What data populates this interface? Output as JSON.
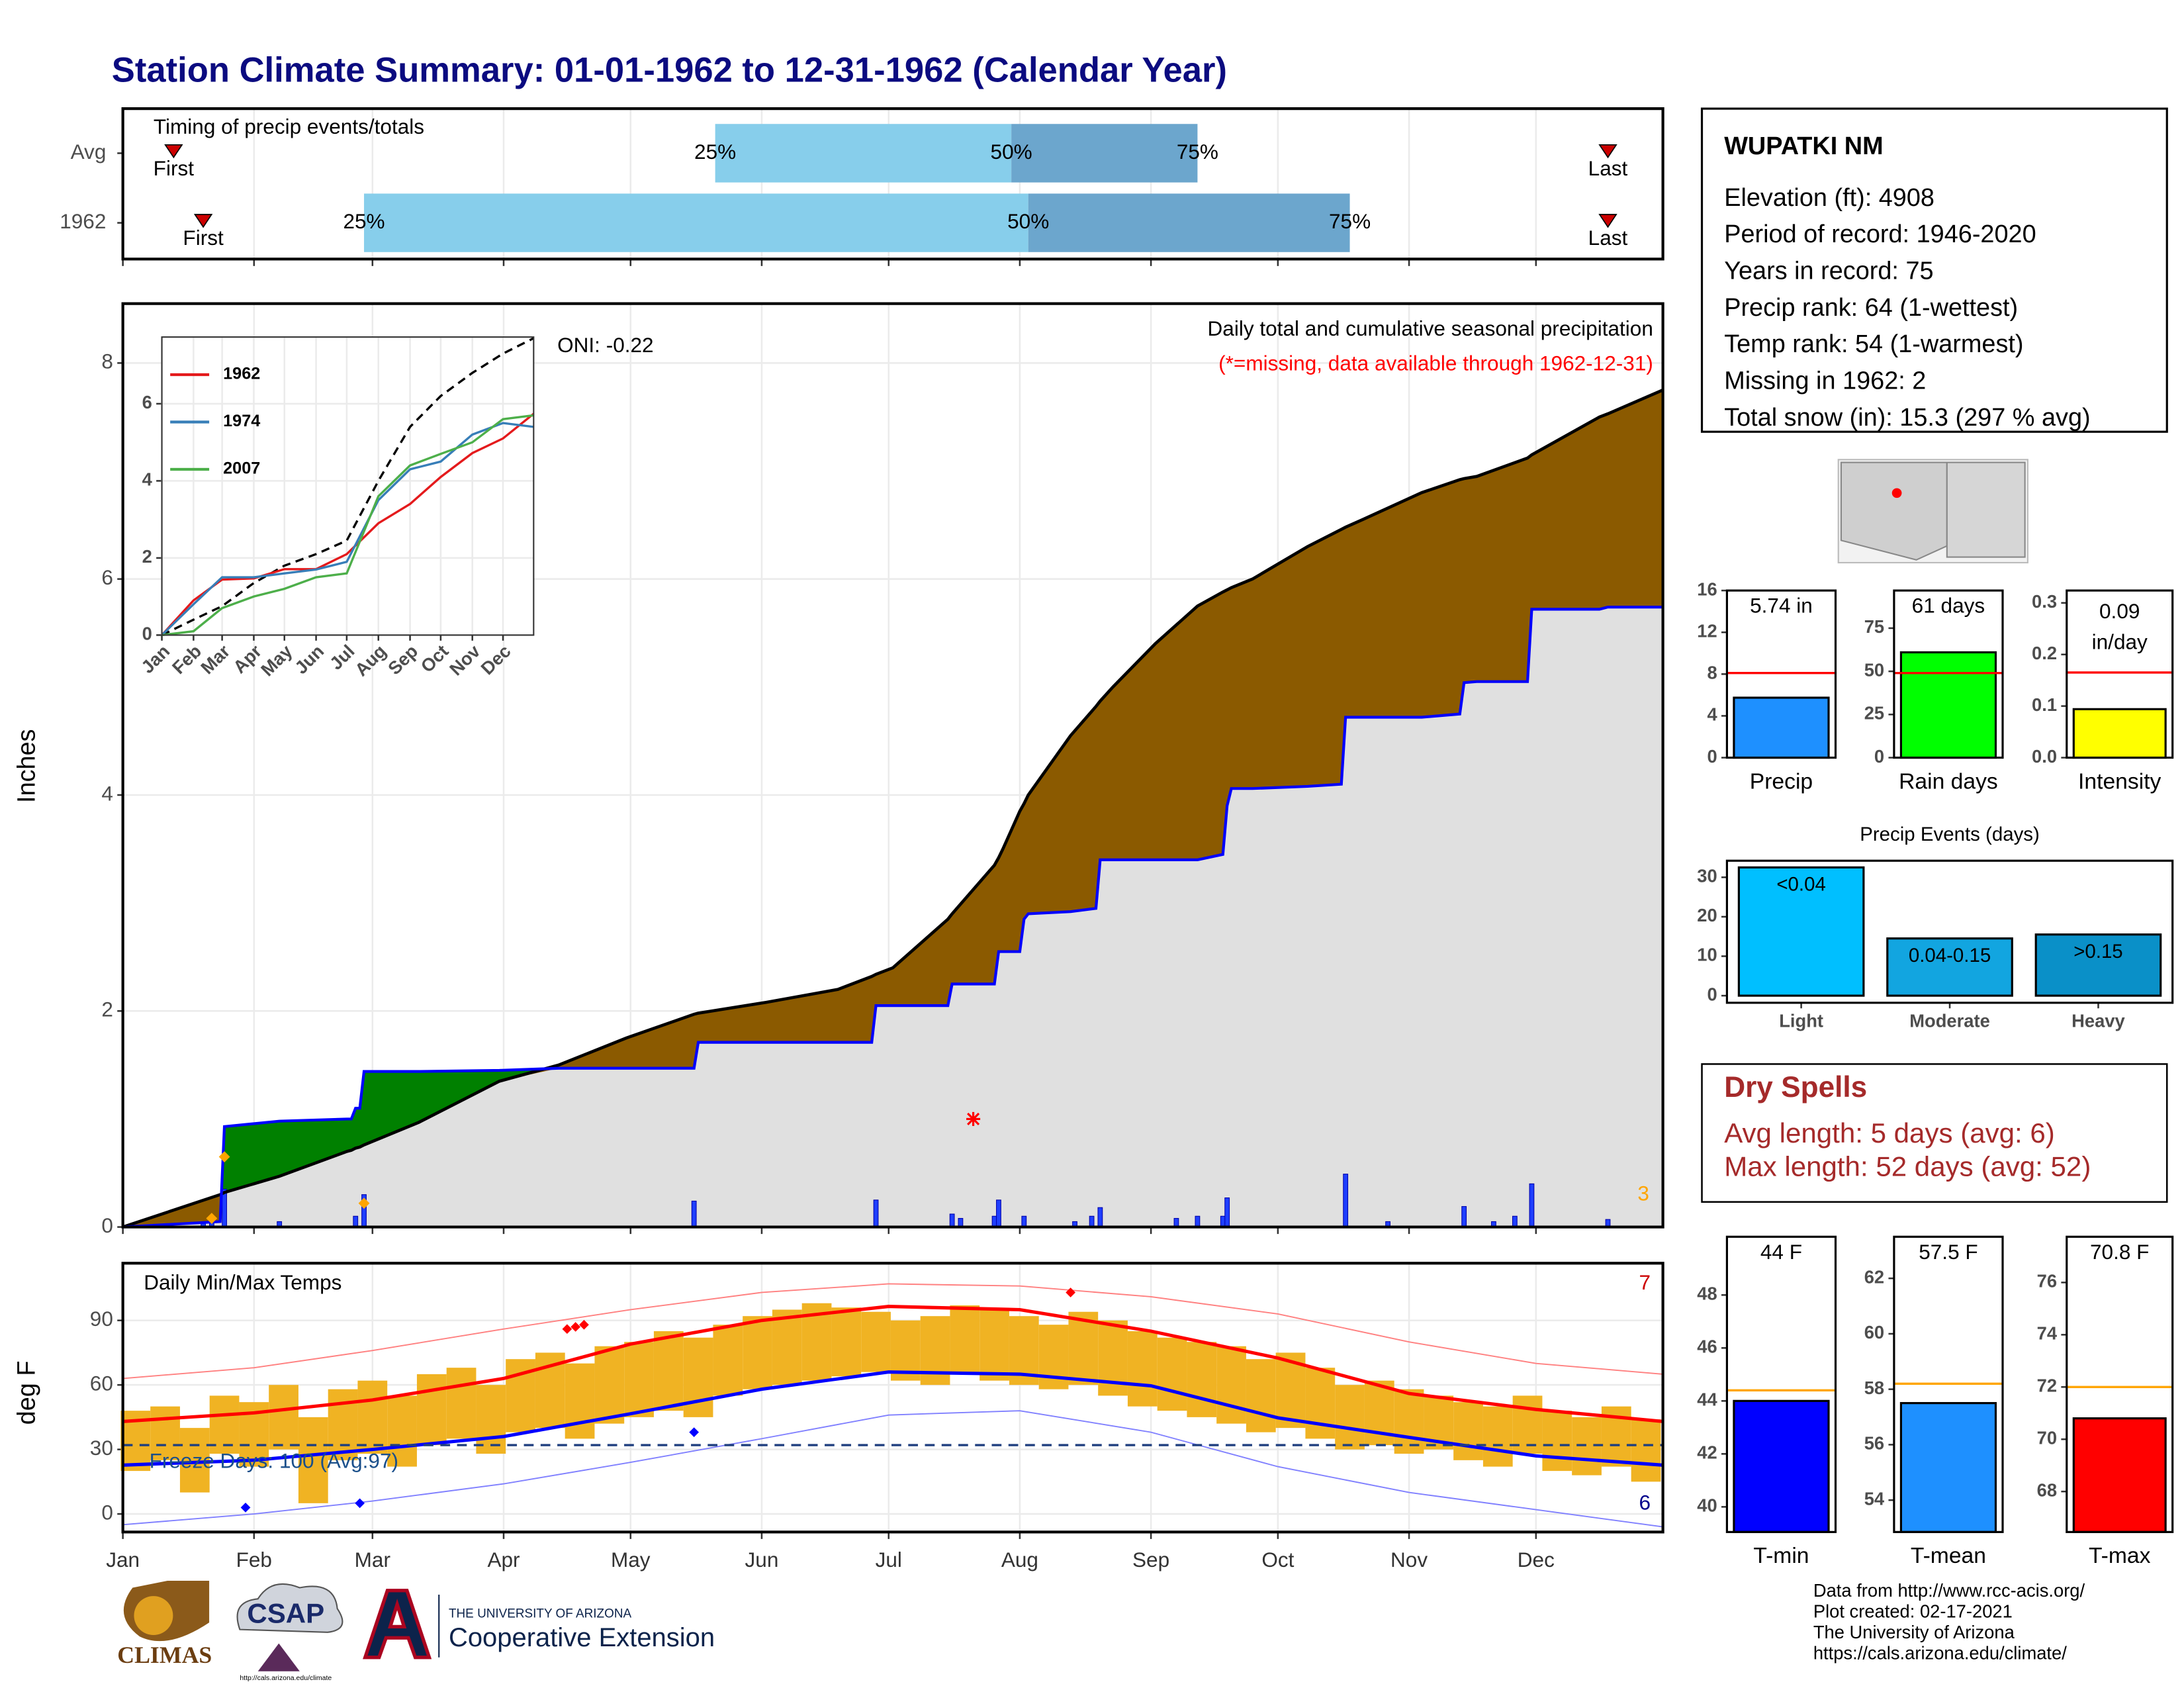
{
  "title": "Station Climate Summary: 01-01-1962 to 12-31-1962 (Calendar Year)",
  "station": {
    "name": "WUPATKI NM",
    "lines": [
      "Elevation (ft): 4908",
      "Period of record: 1946-2020",
      "Years in record: 75",
      "Precip rank: 64 (1-wettest)",
      "Temp rank: 54 (1-warmest)",
      "Missing in 1962: 2",
      "Total snow (in): 15.3 (297 % avg)"
    ]
  },
  "dry_spells": {
    "title": "Dry Spells",
    "lines": [
      "Avg length: 5 days (avg: 6)",
      "Max length: 52 days (avg: 52)"
    ]
  },
  "credits": [
    "Data from http://www.rcc-acis.org/",
    "Plot created: 02-17-2021",
    "The University of Arizona",
    "https://cals.arizona.edu/climate/"
  ],
  "logos": {
    "climas": "CLIMAS",
    "csap": "CSAP",
    "csap_url": "http://cals.arizona.edu/climate",
    "ua": "THE UNIVERSITY OF ARIZONA",
    "coop": "Cooperative Extension"
  },
  "chart_data": [
    {
      "type": "timing",
      "title": "Timing of precip events/totals",
      "categories": [
        "Avg",
        "1962"
      ],
      "first": [
        13,
        20
      ],
      "p25": [
        141,
        58
      ],
      "p50": [
        211,
        215
      ],
      "p75": [
        255,
        291
      ],
      "last": [
        352,
        352
      ],
      "labels": {
        "first": "First",
        "last": "Last",
        "p25": "25%",
        "p50": "50%",
        "p75": "75%"
      },
      "colors": [
        "#87ceeb",
        "#6ca6cd"
      ],
      "marker_color": "#cc0000",
      "xlim": [
        1,
        365
      ],
      "xticks": [
        1,
        32,
        60,
        91,
        121,
        152,
        182,
        213,
        244,
        274,
        305,
        335
      ]
    },
    {
      "type": "cumulative_precip",
      "title": "Daily total and cumulative seasonal precipitation",
      "subtitle": "(*=missing, data available through 1962-12-31)",
      "annotation": "ONI: -0.22",
      "corner_count": 3,
      "ylabel": "Inches",
      "xlim": [
        1,
        365
      ],
      "xticks": [
        1,
        32,
        60,
        91,
        121,
        152,
        182,
        213,
        244,
        274,
        305,
        335
      ],
      "ylim": [
        0,
        8.55
      ],
      "yticks": [
        0,
        2,
        4,
        6,
        8
      ],
      "grid": true,
      "x": [
        1,
        24,
        25,
        38,
        54,
        55,
        56,
        57,
        58,
        71,
        90,
        104,
        120,
        136,
        137,
        153,
        170,
        178,
        179,
        183,
        196,
        197,
        207,
        208,
        209,
        213,
        214,
        215,
        225,
        231,
        232,
        235,
        245,
        255,
        261,
        262,
        263,
        268,
        281,
        289,
        290,
        294,
        308,
        317,
        318,
        321,
        333,
        334,
        350,
        352,
        365
      ],
      "obs_cumulative": {
        "color": "#0000ff",
        "values": [
          0,
          0.05,
          0.93,
          0.98,
          1.0,
          1.0,
          1.1,
          1.1,
          1.44,
          1.44,
          1.45,
          1.47,
          1.47,
          1.47,
          1.71,
          1.71,
          1.71,
          1.71,
          2.05,
          2.05,
          2.05,
          2.25,
          2.25,
          2.55,
          2.55,
          2.55,
          2.85,
          2.9,
          2.92,
          2.95,
          3.4,
          3.4,
          3.4,
          3.4,
          3.45,
          3.9,
          4.06,
          4.06,
          4.08,
          4.1,
          4.72,
          4.72,
          4.72,
          4.75,
          5.04,
          5.05,
          5.05,
          5.72,
          5.72,
          5.74,
          5.74
        ]
      },
      "avg_cumulative": {
        "color": "#000000",
        "values": [
          0,
          0.3,
          0.32,
          0.47,
          0.7,
          0.71,
          0.73,
          0.74,
          0.76,
          0.97,
          1.35,
          1.5,
          1.75,
          1.97,
          1.98,
          2.08,
          2.2,
          2.32,
          2.34,
          2.4,
          2.85,
          2.9,
          3.35,
          3.42,
          3.5,
          3.85,
          3.92,
          4.0,
          4.55,
          4.82,
          4.87,
          5.0,
          5.4,
          5.75,
          5.88,
          5.9,
          5.92,
          6.0,
          6.3,
          6.46,
          6.48,
          6.55,
          6.8,
          6.92,
          6.93,
          6.95,
          7.12,
          7.15,
          7.5,
          7.53,
          7.75
        ]
      },
      "above_color": "#008000",
      "below_color": "#8b5a00",
      "base_color": "#e0e0e0",
      "daily": {
        "color": "#1f3fff",
        "x": [
          20,
          22,
          25,
          38,
          56,
          58,
          136,
          179,
          197,
          199,
          207,
          208,
          214,
          226,
          230,
          232,
          250,
          255,
          261,
          262,
          290,
          300,
          318,
          325,
          330,
          334,
          352
        ],
        "values": [
          0.04,
          0.08,
          0.35,
          0.05,
          0.1,
          0.3,
          0.24,
          0.25,
          0.12,
          0.08,
          0.1,
          0.25,
          0.1,
          0.05,
          0.1,
          0.18,
          0.08,
          0.1,
          0.1,
          0.27,
          0.49,
          0.05,
          0.19,
          0.05,
          0.1,
          0.4,
          0.07
        ]
      },
      "snow_points": {
        "color": "#ffa500",
        "x": [
          22,
          25,
          58
        ],
        "values": [
          0.08,
          0.65,
          0.22
        ]
      },
      "missing_points": {
        "color": "#ff0000",
        "x": [
          202
        ],
        "values": [
          1.0
        ]
      }
    },
    {
      "type": "inset_lines",
      "xlim": [
        1,
        365
      ],
      "ylim": [
        0,
        7.73
      ],
      "yticks": [
        0,
        2,
        4,
        6
      ],
      "xticks": [
        {
          "value": 1,
          "label": "Jan"
        },
        {
          "value": 32,
          "label": "Feb"
        },
        {
          "value": 60,
          "label": "Mar"
        },
        {
          "value": 91,
          "label": "Apr"
        },
        {
          "value": 121,
          "label": "May"
        },
        {
          "value": 152,
          "label": "Jun"
        },
        {
          "value": 182,
          "label": "Jul"
        },
        {
          "value": 213,
          "label": "Aug"
        },
        {
          "value": 244,
          "label": "Sep"
        },
        {
          "value": 274,
          "label": "Oct"
        },
        {
          "value": 305,
          "label": "Nov"
        },
        {
          "value": 335,
          "label": "Dec"
        }
      ],
      "x": [
        1,
        32,
        60,
        91,
        121,
        152,
        182,
        213,
        244,
        274,
        305,
        335,
        365
      ],
      "average": {
        "color": "#000000",
        "values": [
          0,
          0.4,
          0.75,
          1.35,
          1.8,
          2.1,
          2.45,
          4.0,
          5.4,
          6.2,
          6.8,
          7.3,
          7.7
        ]
      },
      "series": [
        {
          "name": "1962",
          "color": "#e41a1c",
          "values": [
            0,
            0.9,
            1.44,
            1.47,
            1.71,
            1.71,
            2.1,
            2.9,
            3.4,
            4.1,
            4.72,
            5.1,
            5.74
          ]
        },
        {
          "name": "1974",
          "color": "#377eb8",
          "values": [
            0,
            0.8,
            1.5,
            1.5,
            1.6,
            1.7,
            1.9,
            3.5,
            4.3,
            4.5,
            5.2,
            5.5,
            5.4
          ]
        },
        {
          "name": "2007",
          "color": "#4daf4a",
          "values": [
            0,
            0.1,
            0.7,
            1.0,
            1.2,
            1.5,
            1.6,
            3.6,
            4.4,
            4.7,
            5.0,
            5.6,
            5.7
          ]
        }
      ]
    },
    {
      "type": "temps",
      "title": "Daily Min/Max Temps",
      "ylabel": "deg F",
      "freeze_label": "Freeze Days: 100 (Avg:97)",
      "high_count": 7,
      "low_count": 6,
      "freeze_line": 32,
      "xlim": [
        1,
        365
      ],
      "ylim": [
        -8.4,
        116.6
      ],
      "yticks": [
        0,
        30,
        60,
        90
      ],
      "grid": true,
      "xticks": [
        {
          "value": 1,
          "label": "Jan"
        },
        {
          "value": 32,
          "label": "Feb"
        },
        {
          "value": 60,
          "label": "Mar"
        },
        {
          "value": 91,
          "label": "Apr"
        },
        {
          "value": 121,
          "label": "May"
        },
        {
          "value": 152,
          "label": "Jun"
        },
        {
          "value": 182,
          "label": "Jul"
        },
        {
          "value": 213,
          "label": "Aug"
        },
        {
          "value": 244,
          "label": "Sep"
        },
        {
          "value": 274,
          "label": "Oct"
        },
        {
          "value": 305,
          "label": "Nov"
        },
        {
          "value": 335,
          "label": "Dec"
        }
      ],
      "bars": {
        "color": "#f0b323",
        "x": [
          4,
          11,
          18,
          25,
          32,
          39,
          46,
          53,
          60,
          67,
          74,
          81,
          88,
          95,
          102,
          109,
          116,
          123,
          130,
          137,
          144,
          151,
          158,
          165,
          172,
          179,
          186,
          193,
          200,
          207,
          214,
          221,
          228,
          235,
          242,
          249,
          256,
          263,
          270,
          277,
          284,
          291,
          298,
          305,
          312,
          319,
          326,
          333,
          340,
          347,
          354,
          361
        ],
        "max": [
          48,
          50,
          40,
          55,
          52,
          60,
          45,
          58,
          62,
          55,
          65,
          68,
          60,
          72,
          75,
          70,
          78,
          80,
          85,
          82,
          88,
          92,
          95,
          98,
          96,
          94,
          90,
          92,
          97,
          95,
          92,
          88,
          94,
          90,
          85,
          82,
          80,
          78,
          72,
          75,
          68,
          60,
          62,
          58,
          55,
          52,
          50,
          55,
          48,
          45,
          50,
          44
        ],
        "min": [
          20,
          25,
          10,
          28,
          22,
          30,
          5,
          25,
          28,
          22,
          32,
          35,
          28,
          38,
          40,
          35,
          42,
          45,
          48,
          45,
          55,
          58,
          60,
          62,
          64,
          66,
          62,
          60,
          65,
          62,
          60,
          58,
          60,
          55,
          50,
          48,
          45,
          42,
          38,
          40,
          35,
          30,
          32,
          28,
          30,
          25,
          22,
          28,
          20,
          18,
          22,
          15
        ]
      },
      "normals": {
        "x": [
          1,
          32,
          60,
          91,
          121,
          152,
          182,
          213,
          244,
          274,
          305,
          335,
          365
        ],
        "avg_max": [
          43,
          47,
          53,
          63,
          79,
          90,
          96.5,
          95,
          85,
          72.5,
          56,
          48.6,
          43
        ],
        "avg_min": [
          22.7,
          25,
          30,
          36,
          46.6,
          58,
          66,
          65,
          59.6,
          44.7,
          35.6,
          27,
          22.7
        ],
        "record_max": [
          63,
          68,
          76,
          86,
          95,
          103,
          107,
          106,
          101,
          93,
          80,
          70,
          65
        ],
        "record_min": [
          -5,
          0,
          6,
          14,
          24,
          35,
          46,
          48,
          38,
          22,
          10,
          2,
          -6
        ],
        "avg_max_color": "#ff0000",
        "avg_min_color": "#0000ff",
        "record_max_color": "#ff8080",
        "record_min_color": "#8080ff",
        "freeze_color": "#1f3f7f"
      },
      "record_high_points": {
        "color": "#ff0000",
        "x": [
          106,
          108,
          110,
          225
        ],
        "values": [
          86,
          87,
          88,
          103
        ]
      },
      "record_low_points": {
        "color": "#0000ff",
        "x": [
          30,
          57,
          136
        ],
        "values": [
          3,
          5,
          38
        ]
      }
    },
    {
      "type": "single_bar",
      "categories": [
        "Precip"
      ],
      "values": [
        5.74
      ],
      "value_labels": [
        "5.74 in"
      ],
      "average": 8.1,
      "color": "#1e90ff",
      "average_color": "#ff0000",
      "ylim": [
        0,
        16
      ],
      "yticks": [
        0,
        4,
        8,
        12,
        16
      ]
    },
    {
      "type": "single_bar",
      "categories": [
        "Rain days"
      ],
      "values": [
        61
      ],
      "value_labels": [
        "61 days"
      ],
      "average": 49,
      "color": "#00ff00",
      "average_color": "#ff0000",
      "ylim": [
        0,
        96.8
      ],
      "yticks": [
        0,
        25,
        50,
        75
      ]
    },
    {
      "type": "single_bar",
      "categories": [
        "Intensity"
      ],
      "values": [
        0.094
      ],
      "value_labels": [
        "0.09"
      ],
      "unit": "in/day",
      "average": 0.165,
      "color": "#ffff00",
      "average_color": "#ff0000",
      "ylim": [
        0,
        0.324
      ],
      "yticks": [
        {
          "value": 0,
          "label": "0.0"
        },
        0.1,
        0.2,
        0.3
      ]
    },
    {
      "type": "bar",
      "title": "Precip Events (days)",
      "categories": [
        "Light",
        "Moderate",
        "Heavy"
      ],
      "values": [
        32.5,
        14.5,
        15.5
      ],
      "bar_labels": [
        "<0.04",
        "0.04-0.15",
        ">0.15"
      ],
      "colors": [
        "#00bfff",
        "#12a5e0",
        "#0a90c8"
      ],
      "ylim": [
        -1.8,
        34.2
      ],
      "yticks": [
        0,
        10,
        20,
        30
      ]
    },
    {
      "type": "single_bar",
      "categories": [
        "T-min"
      ],
      "values": [
        44
      ],
      "value_labels": [
        "44 F"
      ],
      "average": 44.4,
      "color": "#0000ff",
      "average_color": "#ffa500",
      "ylim": [
        39.05,
        50.2
      ],
      "yticks": [
        40,
        42,
        44,
        46,
        48
      ]
    },
    {
      "type": "single_bar",
      "categories": [
        "T-mean"
      ],
      "values": [
        57.5
      ],
      "value_labels": [
        "57.5 F"
      ],
      "average": 58.2,
      "color": "#1e90ff",
      "average_color": "#ffa500",
      "ylim": [
        52.85,
        63.5
      ],
      "yticks": [
        54,
        56,
        58,
        60,
        62
      ]
    },
    {
      "type": "single_bar",
      "categories": [
        "T-max"
      ],
      "values": [
        70.8
      ],
      "value_labels": [
        "70.8 F"
      ],
      "average": 72,
      "color": "#ff0000",
      "average_color": "#ffa500",
      "ylim": [
        66.45,
        77.75
      ],
      "yticks": [
        68,
        70,
        72,
        74,
        76
      ]
    }
  ]
}
